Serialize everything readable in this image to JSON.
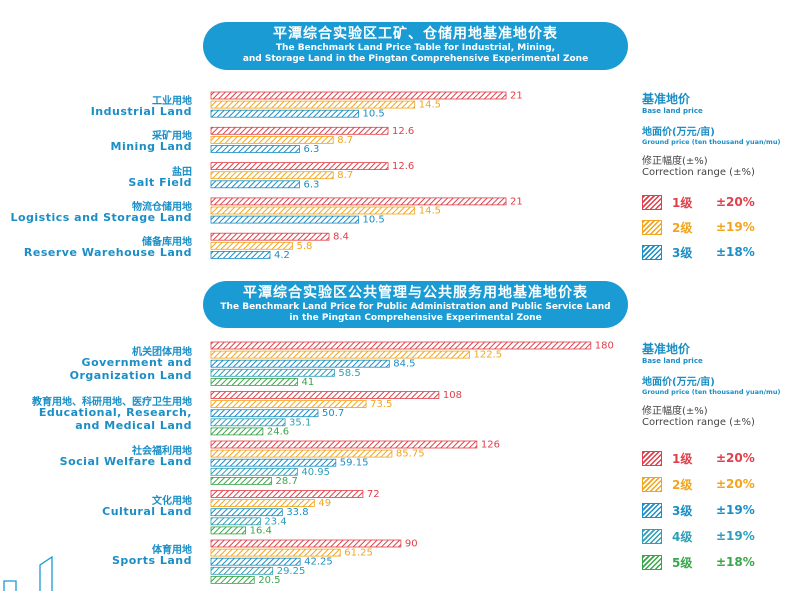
{
  "section1": {
    "title_zh": "平潭综合实验区工矿、仓储用地基准地价表",
    "title_en_1": "The Benchmark Land Price Table for Industrial, Mining,",
    "title_en_2": "and Storage Land in the Pingtan Comprehensive Experimental Zone"
  },
  "section2": {
    "title_zh": "平潭综合实验区公共管理与公共服务用地基准地价表",
    "title_en_1": "The Benchmark Land Price for Public Administration and Public Service Land",
    "title_en_2": "in the Pingtan Comprehensive Experimental Zone"
  },
  "legend_header": {
    "base_zh": "基准地价",
    "base_en": "Base land price",
    "ground_zh": "地面价(万元/亩)",
    "ground_en": "Ground price (ten thousand yuan/mu)",
    "corr_zh": "修正幅度(±%)",
    "corr_en": "Correction range (±%)"
  },
  "colors": {
    "red": "#e0404a",
    "orange": "#f2a51c",
    "blue": "#1b8ec6",
    "teal": "#2e9fb8",
    "green": "#3aa64a"
  },
  "chart_data": [
    {
      "type": "bar",
      "orientation": "horizontal",
      "categories_zh": [
        "工业用地",
        "采矿用地",
        "盐田",
        "物流仓储用地",
        "储备库用地"
      ],
      "categories_en": [
        "Industrial Land",
        "Mining Land",
        "Salt Field",
        "Logistics and Storage Land",
        "Reserve Warehouse Land"
      ],
      "series": [
        {
          "name": "1级",
          "values": [
            21,
            12.6,
            12.6,
            21,
            8.4
          ]
        },
        {
          "name": "2级",
          "values": [
            14.5,
            8.7,
            8.7,
            14.5,
            5.8
          ]
        },
        {
          "name": "3级",
          "values": [
            10.5,
            6.3,
            6.3,
            10.5,
            4.2
          ]
        }
      ],
      "legend": [
        {
          "level": "1级",
          "range": "±20%",
          "color": "#e0404a"
        },
        {
          "level": "2级",
          "range": "±19%",
          "color": "#f2a51c"
        },
        {
          "level": "3级",
          "range": "±18%",
          "color": "#1b8ec6"
        }
      ]
    },
    {
      "type": "bar",
      "orientation": "horizontal",
      "categories_zh": [
        "机关团体用地",
        "教育用地、科研用地、医疗卫生用地",
        "社会福利用地",
        "文化用地",
        "体育用地"
      ],
      "categories_en": [
        [
          "Government and",
          "Organization Land"
        ],
        [
          "Educational, Research,",
          "and Medical Land"
        ],
        [
          "Social Welfare Land"
        ],
        [
          "Cultural Land"
        ],
        [
          "Sports Land"
        ]
      ],
      "series": [
        {
          "name": "1级",
          "values": [
            180,
            108,
            126,
            72,
            90
          ]
        },
        {
          "name": "2级",
          "values": [
            122.5,
            73.5,
            85.75,
            49,
            61.25
          ]
        },
        {
          "name": "3级",
          "values": [
            84.5,
            50.7,
            59.15,
            33.8,
            42.25
          ]
        },
        {
          "name": "4级",
          "values": [
            58.5,
            35.1,
            40.95,
            23.4,
            29.25
          ]
        },
        {
          "name": "5级",
          "values": [
            41,
            24.6,
            28.7,
            16.4,
            20.5
          ]
        }
      ],
      "legend": [
        {
          "level": "1级",
          "range": "±20%",
          "color": "#e0404a"
        },
        {
          "level": "2级",
          "range": "±20%",
          "color": "#f2a51c"
        },
        {
          "level": "3级",
          "range": "±19%",
          "color": "#1b8ec6"
        },
        {
          "level": "4级",
          "range": "±19%",
          "color": "#2e9fb8"
        },
        {
          "level": "5级",
          "range": "±18%",
          "color": "#3aa64a"
        }
      ]
    }
  ]
}
